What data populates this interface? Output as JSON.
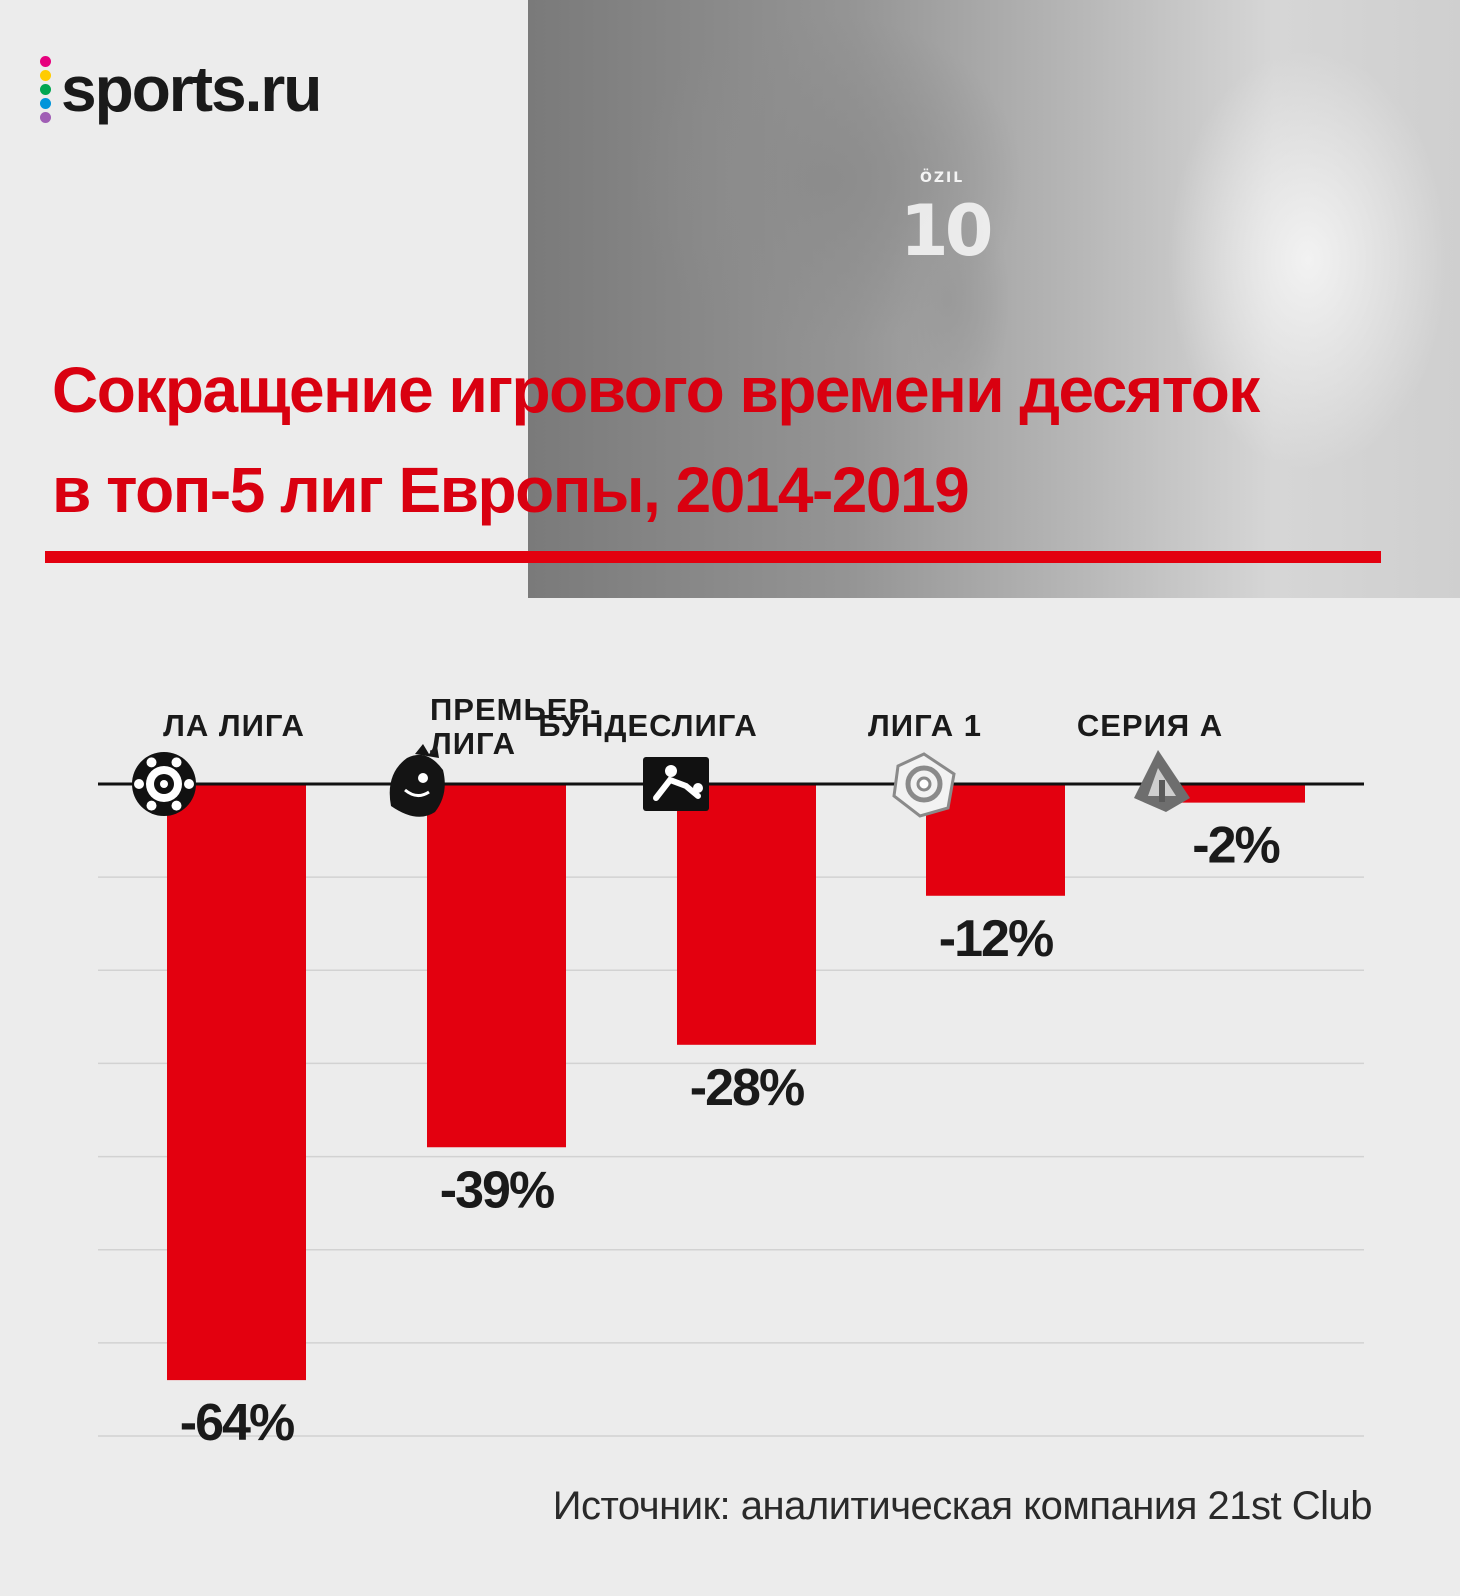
{
  "brand": {
    "name": "sports.ru",
    "dot_colors": [
      "#e6007e",
      "#ffcc00",
      "#00a651",
      "#0095da",
      "#a05eb5"
    ]
  },
  "photo": {
    "jersey_name": "ÖZIL",
    "jersey_number": "10"
  },
  "title": {
    "line1": "Сокращение игрового времени десяток",
    "line2": "в топ-5 лиг Европы, 2014-2019"
  },
  "colors": {
    "accent": "#e3000f",
    "title": "#d90010",
    "axis": "#111111",
    "grid": "#d2d2d2"
  },
  "chart_data": {
    "type": "bar",
    "orientation": "vertical-negative",
    "title": "Сокращение игрового времени десяток в топ-5 лиг Европы, 2014-2019",
    "categories": [
      "ЛА ЛИГА",
      "ПРЕМЬЕР-ЛИГА",
      "БУНДЕСЛИГА",
      "ЛИГА 1",
      "СЕРИЯ А"
    ],
    "category_lines": [
      [
        "ЛА ЛИГА"
      ],
      [
        "ПРЕМЬЕР-",
        "ЛИГА"
      ],
      [
        "БУНДЕСЛИГА"
      ],
      [
        "ЛИГА 1"
      ],
      [
        "СЕРИЯ  А"
      ]
    ],
    "icons": [
      "laliga-icon",
      "premier-league-lion-icon",
      "bundesliga-icon",
      "ligue1-icon",
      "serie-a-icon"
    ],
    "values": [
      -64,
      -39,
      -28,
      -12,
      -2
    ],
    "data_labels": [
      "-64%",
      "-39%",
      "-28%",
      "-12%",
      "-2%"
    ],
    "unit": "%",
    "ylim": [
      -70,
      0
    ],
    "grid": true
  },
  "source": "Источник: аналитическая компания 21st Club"
}
